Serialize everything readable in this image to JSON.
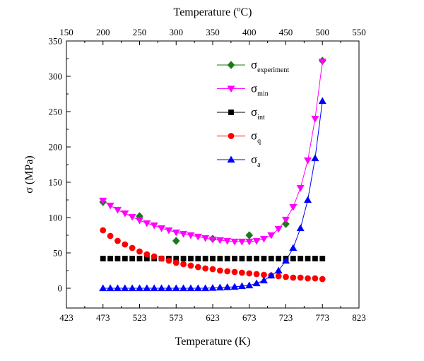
{
  "chart_data": {
    "type": "scatter",
    "x_axis_bottom": {
      "label": "Temperature (K)",
      "range": [
        423,
        823
      ],
      "ticks": [
        423,
        473,
        523,
        573,
        623,
        673,
        723,
        773,
        823
      ],
      "tick_labels": [
        "423",
        "473",
        "523",
        "573",
        "623",
        "673",
        "723",
        "773",
        "823"
      ]
    },
    "x_axis_top": {
      "label": "Temperature (°C)",
      "label_parts": [
        "Temperature (",
        "o",
        "C)"
      ],
      "range": [
        150,
        550
      ],
      "ticks": [
        150,
        200,
        250,
        300,
        350,
        400,
        450,
        500,
        550
      ],
      "tick_labels": [
        "150",
        "200",
        "250",
        "300",
        "350",
        "400",
        "450",
        "500",
        "550"
      ]
    },
    "y_axis": {
      "label": "σ (MPa)",
      "range": [
        -28,
        350
      ],
      "ticks": [
        0,
        50,
        100,
        150,
        200,
        250,
        300,
        350
      ],
      "tick_labels": [
        "0",
        "50",
        "100",
        "150",
        "200",
        "250",
        "300",
        "350"
      ]
    },
    "grid": false,
    "legend_position": "top-center",
    "series": [
      {
        "name": "σexperiment",
        "symbol": "σ",
        "subscript": "experiment",
        "color": "#1a7a1a",
        "marker": "diamond",
        "line": false,
        "x": [
          473,
          523,
          573,
          623,
          673,
          723,
          773
        ],
        "y": [
          122,
          102,
          67,
          70,
          75,
          91,
          322
        ]
      },
      {
        "name": "σmin",
        "symbol": "σ",
        "subscript": "min",
        "color": "#ff00ff",
        "marker": "triangle-down",
        "line": true,
        "x": [
          473,
          483,
          493,
          503,
          513,
          523,
          533,
          543,
          553,
          563,
          573,
          583,
          593,
          603,
          613,
          623,
          633,
          643,
          653,
          663,
          673,
          683,
          693,
          703,
          713,
          723,
          733,
          743,
          753,
          763,
          773
        ],
        "y": [
          124,
          117,
          111,
          106,
          101,
          96,
          92,
          89,
          85,
          82,
          79,
          77,
          75,
          73,
          71,
          69,
          68,
          67,
          66,
          66,
          66,
          67,
          70,
          75,
          84,
          97,
          115,
          142,
          181,
          240,
          321
        ]
      },
      {
        "name": "σint",
        "symbol": "σ",
        "subscript": "int",
        "color": "#000000",
        "marker": "square",
        "line": false,
        "x": [
          473,
          483,
          493,
          503,
          513,
          523,
          533,
          543,
          553,
          563,
          573,
          583,
          593,
          603,
          613,
          623,
          633,
          643,
          653,
          663,
          673,
          683,
          693,
          703,
          713,
          723,
          733,
          743,
          753,
          763,
          773
        ],
        "y": [
          42,
          42,
          42,
          42,
          42,
          42,
          42,
          42,
          42,
          42,
          42,
          42,
          42,
          42,
          42,
          42,
          42,
          42,
          42,
          42,
          42,
          42,
          42,
          42,
          42,
          42,
          42,
          42,
          42,
          42,
          42
        ]
      },
      {
        "name": "σq",
        "symbol": "σ",
        "subscript": "q",
        "color": "#ff0000",
        "marker": "circle",
        "line": false,
        "x": [
          473,
          483,
          493,
          503,
          513,
          523,
          533,
          543,
          553,
          563,
          573,
          583,
          593,
          603,
          613,
          623,
          633,
          643,
          653,
          663,
          673,
          683,
          693,
          703,
          713,
          723,
          733,
          743,
          753,
          763,
          773
        ],
        "y": [
          82,
          74,
          67,
          62,
          57,
          52,
          48,
          45,
          42,
          39,
          36,
          34,
          32,
          30,
          28,
          27,
          25,
          24,
          23,
          22,
          21,
          20,
          19,
          18,
          17,
          16,
          15,
          15,
          14,
          14,
          13
        ]
      },
      {
        "name": "σa",
        "symbol": "σ",
        "subscript": "a",
        "color": "#0000ff",
        "marker": "triangle-up",
        "line": true,
        "x": [
          473,
          483,
          493,
          503,
          513,
          523,
          533,
          543,
          553,
          563,
          573,
          583,
          593,
          603,
          613,
          623,
          633,
          643,
          653,
          663,
          673,
          683,
          693,
          703,
          713,
          723,
          733,
          743,
          753,
          763,
          773
        ],
        "y": [
          0,
          0,
          0,
          0,
          0,
          0,
          0,
          0,
          0,
          0,
          0,
          0,
          0,
          0,
          0,
          0.5,
          1,
          1.5,
          2,
          3,
          4,
          7,
          11,
          18,
          25,
          39,
          57,
          85,
          125,
          184,
          265
        ]
      }
    ]
  }
}
